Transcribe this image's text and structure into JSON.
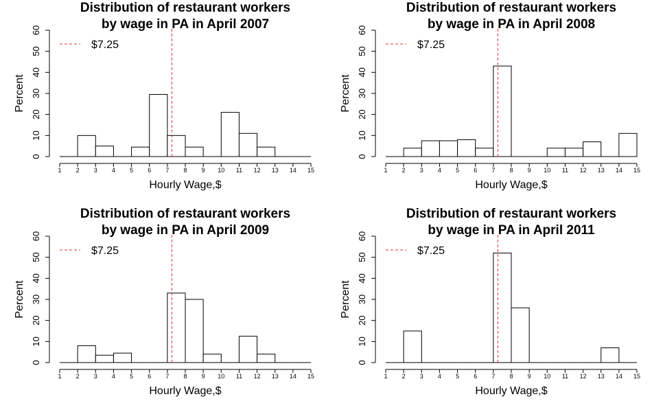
{
  "chart_data": [
    {
      "type": "bar",
      "title_line1": "Distribution of restaurant workers",
      "title_line2": "by wage in PA in April 2007",
      "xlabel": "Hourly Wage,$",
      "ylabel": "Percent",
      "xlim": [
        1,
        15
      ],
      "ylim": [
        0,
        60
      ],
      "xticks": [
        "1",
        "2",
        "3",
        "4",
        "5",
        "6",
        "7",
        "8",
        "9",
        "10",
        "11",
        "12",
        "13",
        "14",
        "15"
      ],
      "yticks": [
        "0",
        "10",
        "20",
        "30",
        "40",
        "50",
        "60"
      ],
      "bin_edges": [
        1,
        2,
        3,
        4,
        5,
        6,
        7,
        8,
        9,
        10,
        11,
        12,
        13,
        14,
        15
      ],
      "values": [
        0,
        10,
        5,
        0,
        4.5,
        29.5,
        10,
        4.5,
        0,
        21,
        11,
        4.5,
        0,
        0
      ],
      "reference_line": {
        "x": 7.25,
        "label": "$7.25",
        "color": "#e0303a"
      },
      "legend_position": "top-left"
    },
    {
      "type": "bar",
      "title_line1": "Distribution of restaurant workers",
      "title_line2": "by wage in PA in April 2008",
      "xlabel": "Hourly Wage,$",
      "ylabel": "Percent",
      "xlim": [
        1,
        15
      ],
      "ylim": [
        0,
        60
      ],
      "xticks": [
        "1",
        "2",
        "3",
        "4",
        "5",
        "6",
        "7",
        "8",
        "9",
        "10",
        "11",
        "12",
        "13",
        "14",
        "15"
      ],
      "yticks": [
        "0",
        "10",
        "20",
        "30",
        "40",
        "50",
        "60"
      ],
      "bin_edges": [
        1,
        2,
        3,
        4,
        5,
        6,
        7,
        8,
        9,
        10,
        11,
        12,
        13,
        14,
        15
      ],
      "values": [
        0,
        4,
        7.5,
        7.5,
        8,
        4,
        43,
        0,
        0,
        4,
        4,
        7,
        0,
        11
      ],
      "reference_line": {
        "x": 7.25,
        "label": "$7.25",
        "color": "#e0303a"
      },
      "legend_position": "top-left"
    },
    {
      "type": "bar",
      "title_line1": "Distribution of restaurant workers",
      "title_line2": "by wage in PA in April 2009",
      "xlabel": "Hourly Wage,$",
      "ylabel": "Percent",
      "xlim": [
        1,
        15
      ],
      "ylim": [
        0,
        60
      ],
      "xticks": [
        "1",
        "2",
        "3",
        "4",
        "5",
        "6",
        "7",
        "8",
        "9",
        "10",
        "11",
        "12",
        "13",
        "14",
        "15"
      ],
      "yticks": [
        "0",
        "10",
        "20",
        "30",
        "40",
        "50",
        "60"
      ],
      "bin_edges": [
        1,
        2,
        3,
        4,
        5,
        6,
        7,
        8,
        9,
        10,
        11,
        12,
        13,
        14,
        15
      ],
      "values": [
        0,
        8,
        3.5,
        4.5,
        0,
        0,
        33,
        30,
        4,
        0,
        12.5,
        4,
        0,
        0
      ],
      "reference_line": {
        "x": 7.25,
        "label": "$7.25",
        "color": "#e0303a"
      },
      "legend_position": "top-left"
    },
    {
      "type": "bar",
      "title_line1": "Distribution of restaurant workers",
      "title_line2": "by wage in PA in April 2011",
      "xlabel": "Hourly Wage,$",
      "ylabel": "Percent",
      "xlim": [
        1,
        15
      ],
      "ylim": [
        0,
        60
      ],
      "xticks": [
        "1",
        "2",
        "3",
        "4",
        "5",
        "6",
        "7",
        "8",
        "9",
        "10",
        "11",
        "12",
        "13",
        "14",
        "15"
      ],
      "yticks": [
        "0",
        "10",
        "20",
        "30",
        "40",
        "50",
        "60"
      ],
      "bin_edges": [
        1,
        2,
        3,
        4,
        5,
        6,
        7,
        8,
        9,
        10,
        11,
        12,
        13,
        14,
        15
      ],
      "values": [
        0,
        15,
        0,
        0,
        0,
        0,
        52,
        26,
        0,
        0,
        0,
        0,
        7,
        0
      ],
      "reference_line": {
        "x": 7.25,
        "label": "$7.25",
        "color": "#e0303a"
      },
      "legend_position": "top-left"
    }
  ]
}
